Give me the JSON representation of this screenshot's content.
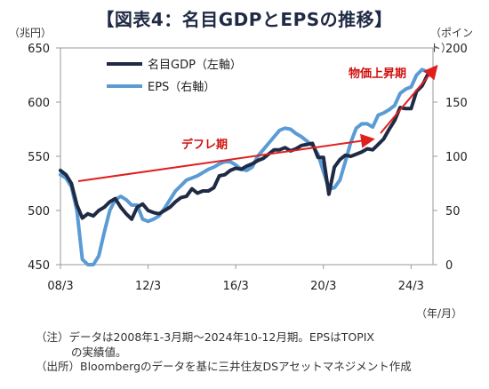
{
  "title": "【図表4：名目GDPとEPSの推移】",
  "units": {
    "left": "（兆円）",
    "right": "（ポイント）",
    "x": "（年/月）"
  },
  "notes": {
    "line1": "（注）データは2008年1-3月期～2024年10-12月期。EPSはTOPIX",
    "line2": "の実績値。",
    "line3": "（出所）Bloombergのデータを基に三井住友DSアセットマネジメント作成"
  },
  "colors": {
    "gdp": "#1f2a44",
    "eps": "#5b9bd5",
    "arrow": "#e0201f",
    "annotation": "#d01010"
  },
  "chart_data": {
    "type": "line",
    "x_ticks": [
      "08/3",
      "12/3",
      "16/3",
      "20/3",
      "24/3"
    ],
    "x_tick_values": [
      2008.0,
      2012.0,
      2016.0,
      2020.0,
      2024.0
    ],
    "xlim": [
      2008.0,
      2025.0
    ],
    "y_left": {
      "ticks": [
        "450",
        "500",
        "550",
        "600",
        "650"
      ],
      "lim": [
        450,
        650
      ]
    },
    "y_right": {
      "ticks": [
        "0",
        "50",
        "100",
        "150",
        "200"
      ],
      "lim": [
        0,
        200
      ]
    },
    "legend": {
      "position": "top-left",
      "gdp_label": "名目GDP（左軸）",
      "eps_label": "EPS（右軸）"
    },
    "grid": false,
    "annotations": {
      "deflation": "デフレ期",
      "inflation": "物価上昇期"
    },
    "series": [
      {
        "name": "名目GDP（左軸）",
        "axis": "left",
        "x": [
          2008.0,
          2008.25,
          2008.5,
          2008.75,
          2009.0,
          2009.25,
          2009.5,
          2009.75,
          2010.0,
          2010.25,
          2010.5,
          2010.75,
          2011.0,
          2011.25,
          2011.5,
          2011.75,
          2012.0,
          2012.25,
          2012.5,
          2012.75,
          2013.0,
          2013.25,
          2013.5,
          2013.75,
          2014.0,
          2014.25,
          2014.5,
          2014.75,
          2015.0,
          2015.25,
          2015.5,
          2015.75,
          2016.0,
          2016.25,
          2016.5,
          2016.75,
          2017.0,
          2017.25,
          2017.5,
          2017.75,
          2018.0,
          2018.25,
          2018.5,
          2018.75,
          2019.0,
          2019.25,
          2019.5,
          2019.75,
          2020.0,
          2020.25,
          2020.5,
          2020.75,
          2021.0,
          2021.25,
          2021.5,
          2021.75,
          2022.0,
          2022.25,
          2022.5,
          2022.75,
          2023.0,
          2023.25,
          2023.5,
          2023.75,
          2024.0,
          2024.25,
          2024.5,
          2024.75
        ],
        "values": [
          537,
          533,
          525,
          505,
          493,
          497,
          495,
          500,
          503,
          508,
          511,
          503,
          497,
          492,
          503,
          506,
          500,
          498,
          497,
          500,
          503,
          508,
          512,
          513,
          520,
          516,
          518,
          518,
          521,
          532,
          533,
          537,
          539,
          538,
          541,
          543,
          546,
          548,
          552,
          556,
          556,
          558,
          555,
          557,
          560,
          561,
          562,
          549,
          549,
          515,
          540,
          547,
          551,
          550,
          552,
          554,
          557,
          556,
          561,
          566,
          575,
          583,
          595,
          594,
          594,
          610,
          615,
          625
        ]
      },
      {
        "name": "EPS（右軸）",
        "axis": "right",
        "x": [
          2008.0,
          2008.25,
          2008.5,
          2008.75,
          2009.0,
          2009.25,
          2009.5,
          2009.75,
          2010.0,
          2010.25,
          2010.5,
          2010.75,
          2011.0,
          2011.25,
          2011.5,
          2011.75,
          2012.0,
          2012.25,
          2012.5,
          2012.75,
          2013.0,
          2013.25,
          2013.5,
          2013.75,
          2014.0,
          2014.25,
          2014.5,
          2014.75,
          2015.0,
          2015.25,
          2015.5,
          2015.75,
          2016.0,
          2016.25,
          2016.5,
          2016.75,
          2017.0,
          2017.25,
          2017.5,
          2017.75,
          2018.0,
          2018.25,
          2018.5,
          2018.75,
          2019.0,
          2019.25,
          2019.5,
          2019.75,
          2020.0,
          2020.25,
          2020.5,
          2020.75,
          2021.0,
          2021.25,
          2021.5,
          2021.75,
          2022.0,
          2022.25,
          2022.5,
          2022.75,
          2023.0,
          2023.25,
          2023.5,
          2023.75,
          2024.0,
          2024.25,
          2024.5,
          2024.75
        ],
        "values": [
          83,
          80,
          72,
          50,
          5,
          0,
          0,
          8,
          30,
          50,
          60,
          63,
          60,
          55,
          55,
          42,
          40,
          42,
          45,
          52,
          60,
          68,
          73,
          78,
          80,
          82,
          85,
          88,
          90,
          93,
          95,
          95,
          92,
          88,
          87,
          90,
          100,
          106,
          112,
          118,
          124,
          126,
          125,
          121,
          118,
          114,
          110,
          102,
          86,
          70,
          71,
          78,
          95,
          113,
          126,
          130,
          130,
          127,
          138,
          140,
          143,
          147,
          158,
          162,
          164,
          175,
          180,
          178
        ]
      }
    ]
  }
}
